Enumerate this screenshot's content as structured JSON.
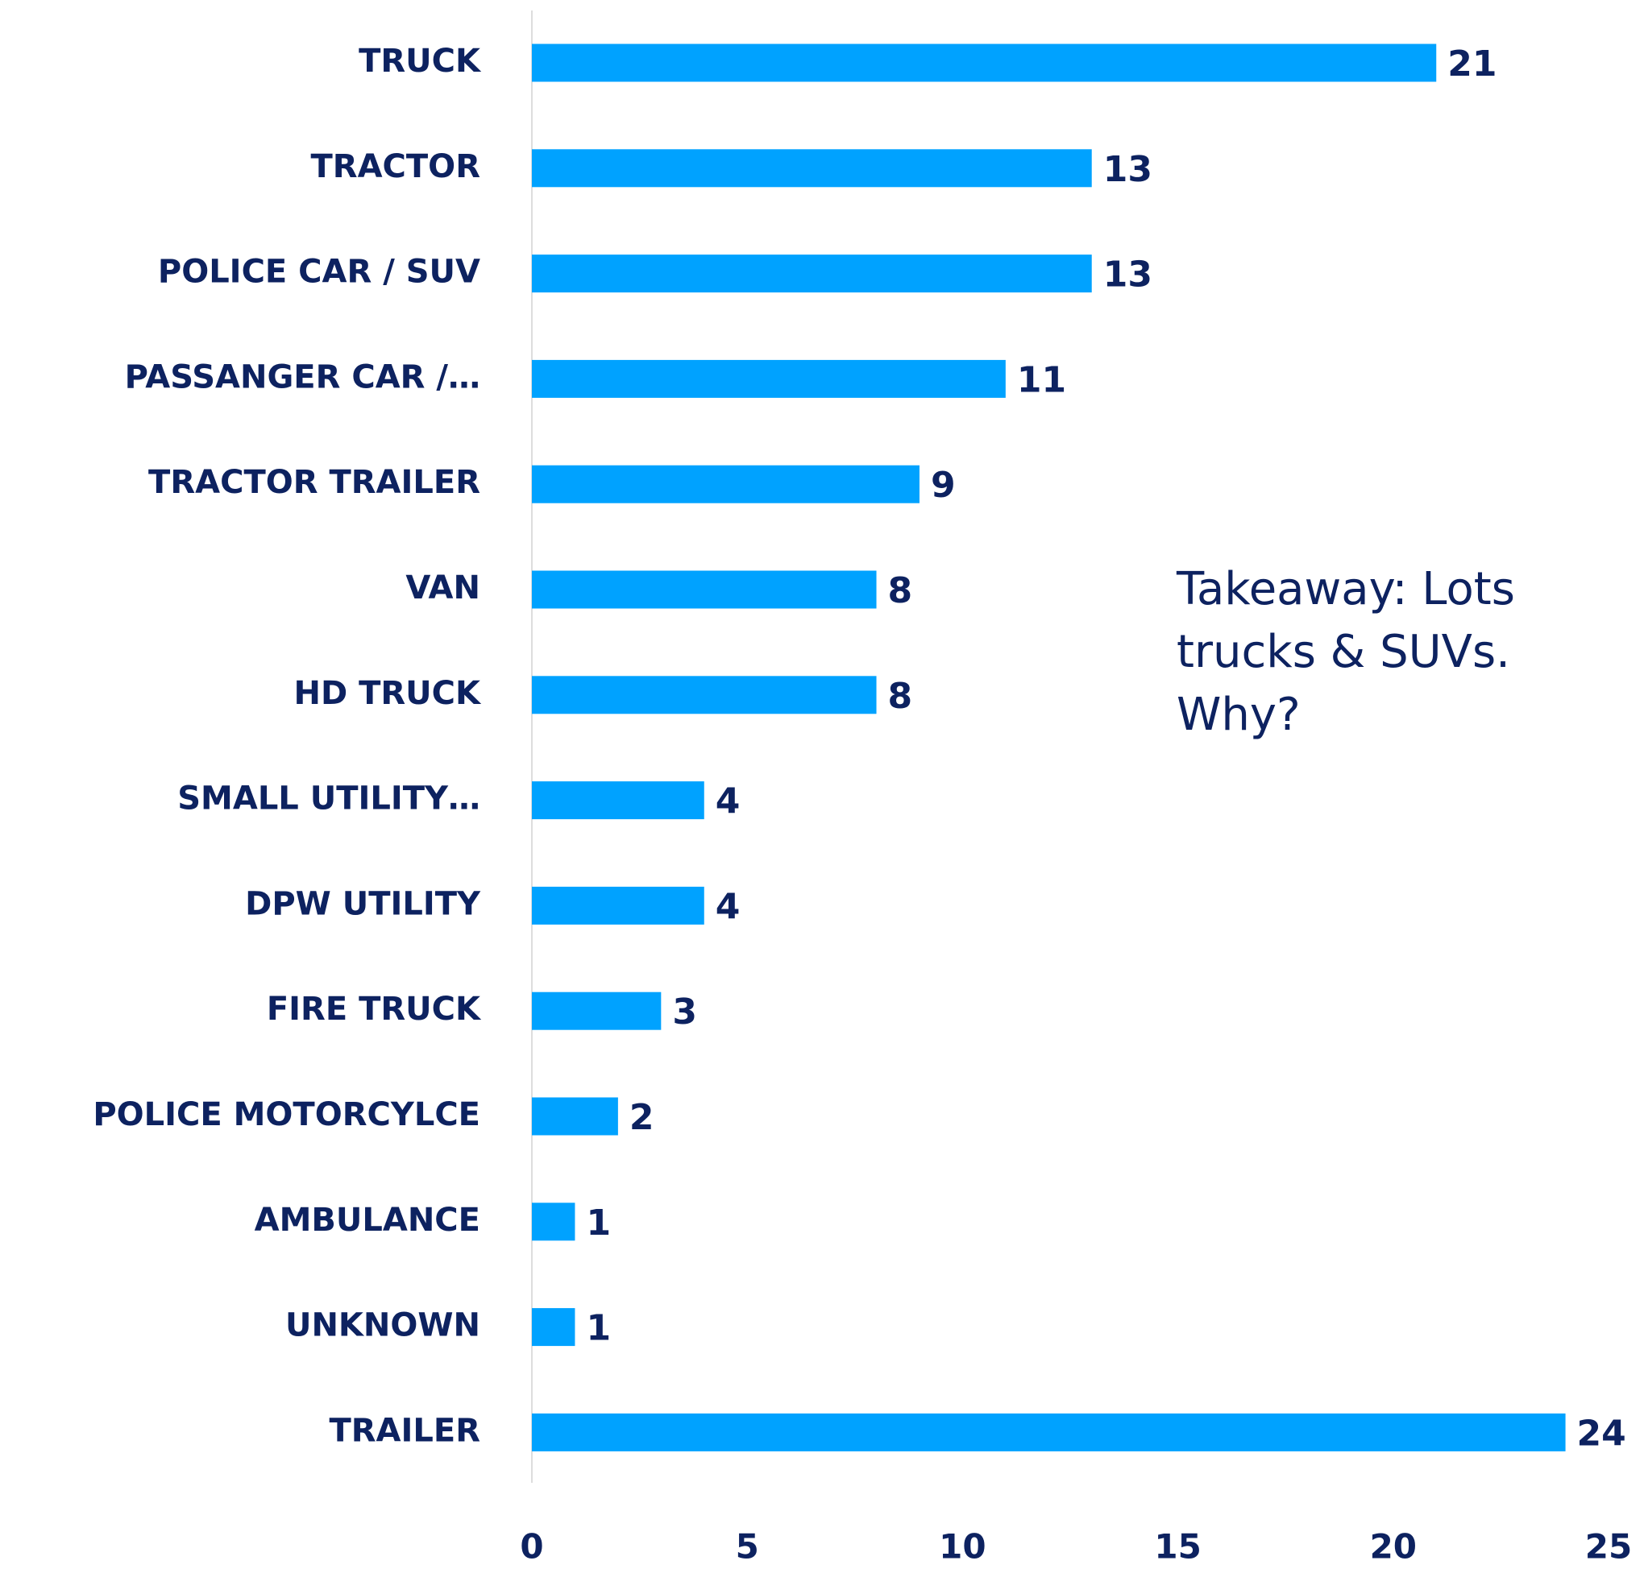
{
  "chart_data": {
    "type": "bar",
    "orientation": "horizontal",
    "categories": [
      "TRUCK",
      "TRACTOR",
      "POLICE CAR / SUV",
      "PASSANGER CAR /…",
      "TRACTOR TRAILER",
      "VAN",
      "HD TRUCK",
      "SMALL UTILITY…",
      "DPW UTILITY",
      "FIRE TRUCK",
      "POLICE MOTORCYLCE",
      "AMBULANCE",
      "UNKNOWN",
      "TRAILER"
    ],
    "values": [
      21,
      13,
      13,
      11,
      9,
      8,
      8,
      4,
      4,
      3,
      2,
      1,
      1,
      24
    ],
    "color": "#00a2ff",
    "xlim": [
      0,
      25
    ],
    "xticks": [
      0,
      5,
      10,
      15,
      20,
      25
    ],
    "annotation": [
      "Takeaway: Lots",
      "trucks & SUVs.",
      "Why?"
    ]
  }
}
